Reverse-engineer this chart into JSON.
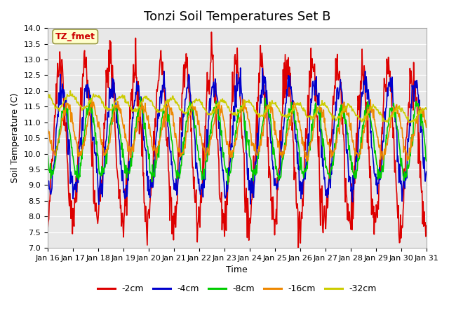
{
  "title": "Tonzi Soil Temperatures Set B",
  "xlabel": "Time",
  "ylabel": "Soil Temperature (C)",
  "ylim": [
    7.0,
    14.0
  ],
  "yticks": [
    7.0,
    7.5,
    8.0,
    8.5,
    9.0,
    9.5,
    10.0,
    10.5,
    11.0,
    11.5,
    12.0,
    12.5,
    13.0,
    13.5,
    14.0
  ],
  "xtick_labels": [
    "Jan 16",
    "Jan 17",
    "Jan 18",
    "Jan 19",
    "Jan 20",
    "Jan 21",
    "Jan 22",
    "Jan 23",
    "Jan 24",
    "Jan 25",
    "Jan 26",
    "Jan 27",
    "Jan 28",
    "Jan 29",
    "Jan 30",
    "Jan 31"
  ],
  "xtick_positions": [
    0,
    1,
    2,
    3,
    4,
    5,
    6,
    7,
    8,
    9,
    10,
    11,
    12,
    13,
    14,
    15
  ],
  "xlim": [
    0,
    15
  ],
  "colors": {
    "-2cm": "#dd0000",
    "-4cm": "#0000cc",
    "-8cm": "#00cc00",
    "-16cm": "#ee8800",
    "-32cm": "#cccc00"
  },
  "series_labels": [
    "-2cm",
    "-4cm",
    "-8cm",
    "-16cm",
    "-32cm"
  ],
  "annotation_label": "TZ_fmet",
  "annotation_color": "#cc0000",
  "annotation_bg": "#ffffcc",
  "annotation_edge": "#999944",
  "plot_bg": "#e8e8e8",
  "grid_color": "#ffffff",
  "title_fontsize": 13,
  "axis_fontsize": 9,
  "tick_fontsize": 8,
  "legend_fontsize": 9,
  "linewidth": 1.2
}
